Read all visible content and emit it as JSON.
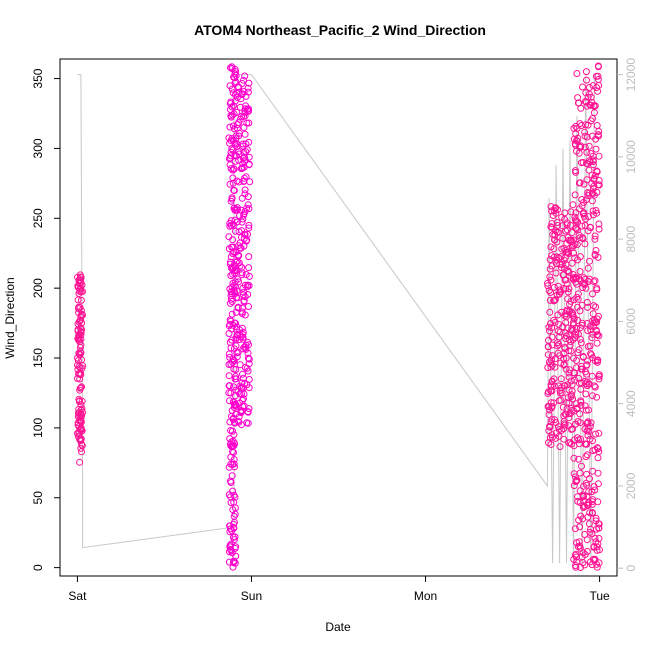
{
  "chart_data": {
    "type": "scatter",
    "title": "ATOM4 Northeast_Pacific_2 Wind_Direction",
    "xlabel": "Date",
    "ylabel": "Wind_Direction",
    "x_ticks": [
      "Sat",
      "Sun",
      "Mon",
      "Tue"
    ],
    "x_tick_positions_days": [
      0,
      1,
      2,
      3
    ],
    "xlim_days": [
      -0.1,
      3.1
    ],
    "ylim": [
      -6,
      364
    ],
    "y_ticks": [
      0,
      50,
      100,
      150,
      200,
      250,
      300,
      350
    ],
    "y2lim": [
      -190,
      12380
    ],
    "y2_ticks": [
      0,
      2000,
      4000,
      6000,
      8000,
      10000,
      12000
    ],
    "grid": false,
    "legend": "none",
    "colors": {
      "points": "#ff1493",
      "points_alt": "#ff00cc",
      "line": "#c8c8c8",
      "right_axis": "#bdbdbd",
      "axis": "#000000"
    },
    "scatter_clusters": [
      {
        "x_range": [
          0.0,
          0.03
        ],
        "y_range": [
          75,
          210
        ],
        "count": 120
      },
      {
        "x_range": [
          0.87,
          0.91
        ],
        "y_range": [
          0,
          360
        ],
        "count": 220
      },
      {
        "x_range": [
          0.91,
          0.99
        ],
        "y_range": [
          100,
          355
        ],
        "count": 220
      },
      {
        "x_range": [
          2.7,
          2.85
        ],
        "y_range": [
          85,
          260
        ],
        "count": 260
      },
      {
        "x_range": [
          2.85,
          3.0
        ],
        "y_range": [
          0,
          360
        ],
        "count": 420
      }
    ],
    "line_series": {
      "axis": "right",
      "points": [
        {
          "x": 0.0,
          "y": 12000
        },
        {
          "x": 0.02,
          "y": 12000
        },
        {
          "x": 0.03,
          "y": 3000
        },
        {
          "x": 0.03,
          "y": 500
        },
        {
          "x": 0.9,
          "y": 1000
        },
        {
          "x": 0.9,
          "y": 12000
        },
        {
          "x": 1.0,
          "y": 12000
        },
        {
          "x": 2.7,
          "y": 2000
        },
        {
          "x": 2.71,
          "y": 9000
        },
        {
          "x": 2.73,
          "y": 120
        },
        {
          "x": 2.75,
          "y": 9800
        },
        {
          "x": 2.77,
          "y": 120
        },
        {
          "x": 2.79,
          "y": 10200
        },
        {
          "x": 2.81,
          "y": 120
        },
        {
          "x": 2.83,
          "y": 10400
        },
        {
          "x": 2.85,
          "y": 120
        },
        {
          "x": 2.87,
          "y": 11000
        },
        {
          "x": 2.9,
          "y": 120
        },
        {
          "x": 2.92,
          "y": 12000
        },
        {
          "x": 2.95,
          "y": 120
        },
        {
          "x": 2.97,
          "y": 12000
        }
      ]
    }
  }
}
